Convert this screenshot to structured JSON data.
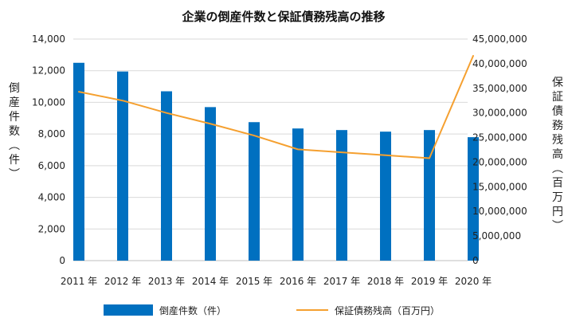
{
  "chart_data": {
    "type": "bar",
    "title": "企業の倒産件数と保証債務残高の推移",
    "categories": [
      "2011 年",
      "2012 年",
      "2013 年",
      "2014 年",
      "2015 年",
      "2016 年",
      "2017 年",
      "2018 年",
      "2019 年",
      "2020 年"
    ],
    "y_left": {
      "label": "倒産件数（件）",
      "ticks": [
        "0",
        "2,000",
        "4,000",
        "6,000",
        "8,000",
        "10,000",
        "12,000",
        "14,000"
      ],
      "range": [
        0,
        14000
      ]
    },
    "y_right": {
      "label": "保証債務残高（百万円）",
      "ticks": [
        "0",
        "5,000,000",
        "10,000,000",
        "15,000,000",
        "20,000,000",
        "25,000,000",
        "30,000,000",
        "35,000,000",
        "40,000,000",
        "45,000,000"
      ],
      "range": [
        0,
        45000000
      ]
    },
    "series": [
      {
        "name": "倒産件数（件）",
        "type": "bar",
        "axis": "left",
        "color": "#0070c0",
        "values": [
          12500,
          11950,
          10700,
          9700,
          8750,
          8350,
          8250,
          8150,
          8250,
          7800
        ]
      },
      {
        "name": "保証債務残高（百万円）",
        "type": "line",
        "axis": "right",
        "color": "#f5a030",
        "values": [
          34300000,
          32500000,
          30000000,
          27800000,
          25400000,
          22600000,
          22000000,
          21400000,
          20800000,
          41600000
        ]
      }
    ],
    "legend_placement": "bottom"
  }
}
